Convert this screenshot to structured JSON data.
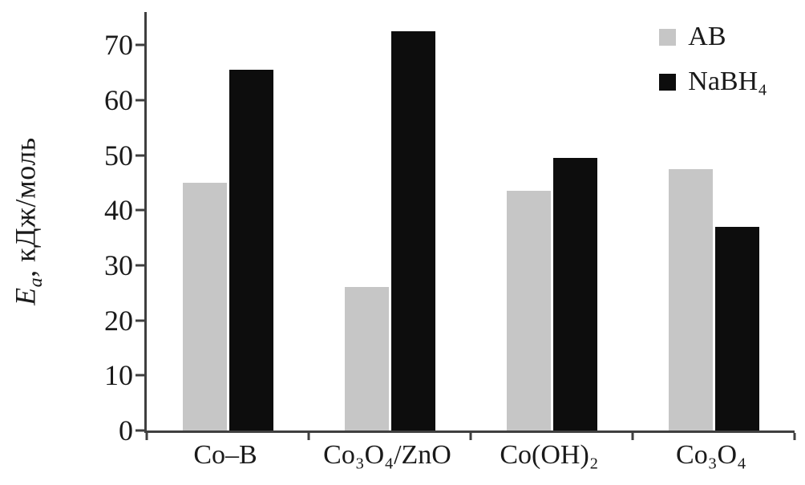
{
  "chart_data": {
    "type": "bar",
    "title": "",
    "categories": [
      "Co–B",
      "Co₃O₄/ZnO",
      "Co(OH)₂",
      "Co₃O₄"
    ],
    "series": [
      {
        "key": "ab",
        "name": "AB",
        "color": "#c6c6c6",
        "values": [
          45,
          26,
          43.5,
          47.5
        ]
      },
      {
        "key": "nabh4",
        "name": "NaBH₄",
        "color": "#0d0d0d",
        "values": [
          65.5,
          72.5,
          49.5,
          37
        ]
      }
    ],
    "xlabel": "",
    "ylabel": {
      "symbol": "E",
      "subscript": "a",
      "rest": ", кДж/моль"
    },
    "yticks": [
      0,
      10,
      20,
      30,
      40,
      50,
      60,
      70
    ],
    "ylim": [
      0,
      76
    ],
    "grid": false,
    "legend_position": "top-right",
    "axis_color": "#3f3f3f",
    "background": "#ffffff"
  }
}
